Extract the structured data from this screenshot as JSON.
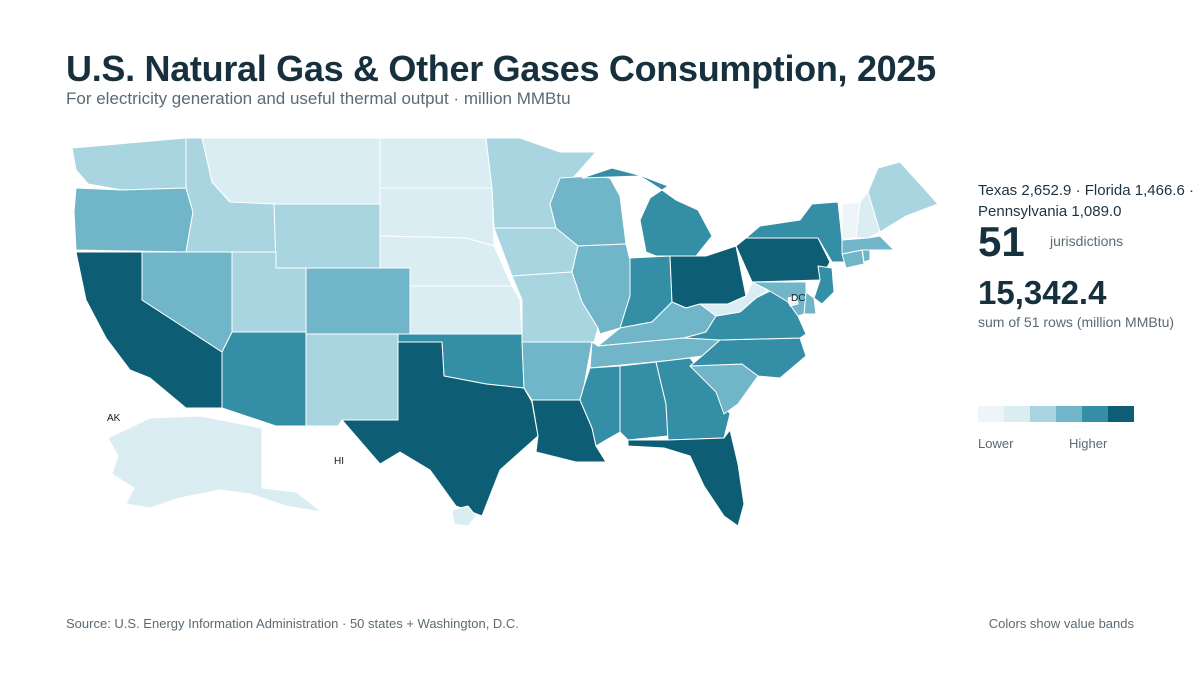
{
  "header": {
    "title": "U.S. Natural Gas & Other Gases Consumption, 2025",
    "subtitle": "For electricity generation and useful thermal output · million MMBtu"
  },
  "summary": {
    "top_states": "Texas 2,652.9 · Florida 1,466.6 · Pennsylvania 1,089.0",
    "count_value": "51",
    "count_label": "jurisdictions",
    "total_value": "15,342.4",
    "total_label": "sum of 51 rows (million MMBtu)"
  },
  "legend": {
    "low_label": "Lower",
    "high_label": "Higher",
    "bands": [
      "#edf5f9",
      "#d9edf2",
      "#a8d5df",
      "#70b6c8",
      "#338ea6",
      "#0d5e75"
    ]
  },
  "map": {
    "labels": {
      "AK": "AK",
      "HI": "HI",
      "DC": "DC"
    },
    "state_bands": {
      "WA": 2,
      "OR": 3,
      "CA": 5,
      "NV": 3,
      "ID": 2,
      "MT": 1,
      "WY": 2,
      "UT": 2,
      "AZ": 4,
      "CO": 3,
      "NM": 2,
      "ND": 1,
      "SD": 1,
      "NE": 1,
      "KS": 1,
      "OK": 4,
      "TX": 5,
      "MN": 2,
      "IA": 2,
      "MO": 2,
      "AR": 3,
      "LA": 5,
      "WI": 3,
      "IL": 3,
      "MI": 4,
      "IN": 4,
      "OH": 5,
      "KY": 3,
      "TN": 3,
      "MS": 4,
      "AL": 4,
      "GA": 4,
      "FL": 5,
      "SC": 3,
      "NC": 4,
      "VA": 4,
      "WV": 1,
      "PA": 5,
      "NY": 4,
      "ME": 2,
      "VT": 0,
      "NH": 1,
      "MA": 3,
      "RI": 3,
      "CT": 3,
      "NJ": 4,
      "DE": 3,
      "MD": 3,
      "AK": 1,
      "HI": 1,
      "DC": 0
    }
  },
  "footer": {
    "source": "Source: U.S. Energy Information Administration · 50 states + Washington, D.C.",
    "note": "Colors show value bands"
  }
}
